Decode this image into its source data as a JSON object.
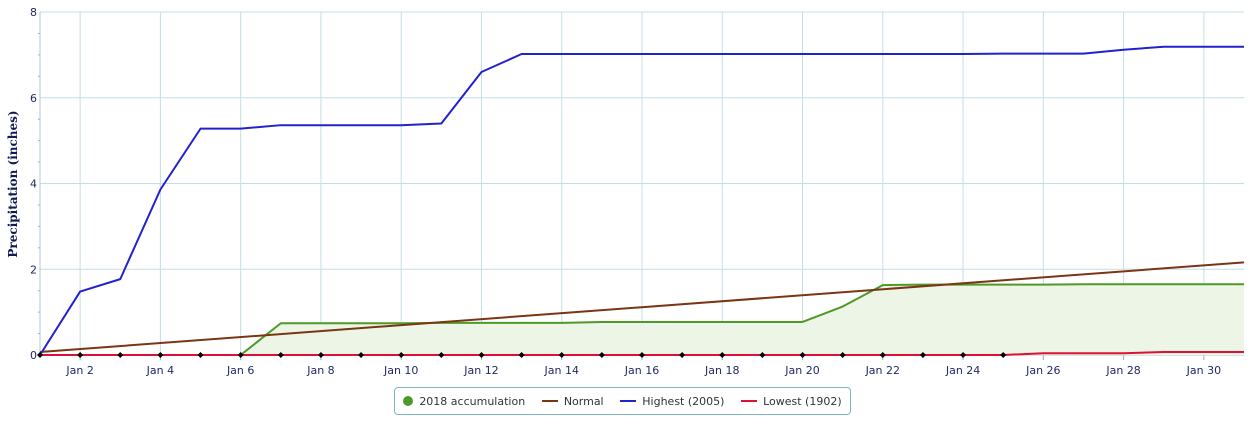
{
  "chart_data": {
    "type": "line",
    "ylabel": "Precipitation (inches)",
    "xlabel": "",
    "ylim": [
      0,
      8
    ],
    "xlim": [
      1,
      31
    ],
    "y_ticks": [
      0,
      2,
      4,
      6,
      8
    ],
    "x_ticks": [
      {
        "day": 2,
        "label": "Jan 2"
      },
      {
        "day": 4,
        "label": "Jan 4"
      },
      {
        "day": 6,
        "label": "Jan 6"
      },
      {
        "day": 8,
        "label": "Jan 8"
      },
      {
        "day": 10,
        "label": "Jan 10"
      },
      {
        "day": 12,
        "label": "Jan 12"
      },
      {
        "day": 14,
        "label": "Jan 14"
      },
      {
        "day": 16,
        "label": "Jan 16"
      },
      {
        "day": 18,
        "label": "Jan 18"
      },
      {
        "day": 20,
        "label": "Jan 20"
      },
      {
        "day": 22,
        "label": "Jan 22"
      },
      {
        "day": 24,
        "label": "Jan 24"
      },
      {
        "day": 26,
        "label": "Jan 26"
      },
      {
        "day": 28,
        "label": "Jan 28"
      },
      {
        "day": 30,
        "label": "Jan 30"
      }
    ],
    "grid": true,
    "legend_position": "bottom-center",
    "series": [
      {
        "name": "2018 accumulation",
        "style": "area",
        "color": "#4e9a26",
        "fill": "#ecf5e6",
        "x": [
          1,
          2,
          3,
          4,
          5,
          6,
          7,
          8,
          9,
          10,
          11,
          12,
          13,
          14,
          15,
          16,
          17,
          18,
          19,
          20,
          21,
          22,
          23,
          24,
          25,
          26,
          27,
          28,
          29,
          30,
          31
        ],
        "values": [
          0,
          0,
          0,
          0,
          0,
          0,
          0.74,
          0.74,
          0.74,
          0.74,
          0.75,
          0.75,
          0.75,
          0.75,
          0.77,
          0.77,
          0.77,
          0.77,
          0.77,
          0.77,
          1.13,
          1.63,
          1.64,
          1.64,
          1.64,
          1.64,
          1.65,
          1.65,
          1.65,
          1.65,
          1.65
        ]
      },
      {
        "name": "Normal",
        "style": "line",
        "color": "#7b3514",
        "x": [
          1,
          31
        ],
        "values": [
          0.07,
          2.16
        ]
      },
      {
        "name": "Highest (2005)",
        "style": "line",
        "color": "#2222cc",
        "x": [
          1,
          2,
          3,
          4,
          5,
          6,
          7,
          8,
          9,
          10,
          11,
          12,
          13,
          14,
          15,
          16,
          17,
          18,
          19,
          20,
          21,
          22,
          23,
          24,
          25,
          26,
          27,
          28,
          29,
          30,
          31
        ],
        "values": [
          0,
          1.48,
          1.77,
          3.86,
          5.28,
          5.28,
          5.36,
          5.36,
          5.36,
          5.36,
          5.4,
          6.6,
          7.02,
          7.02,
          7.02,
          7.02,
          7.02,
          7.02,
          7.02,
          7.02,
          7.02,
          7.02,
          7.02,
          7.02,
          7.03,
          7.03,
          7.03,
          7.12,
          7.19,
          7.19,
          7.19
        ]
      },
      {
        "name": "Lowest (1902)",
        "style": "line",
        "color": "#dd1133",
        "x": [
          1,
          2,
          3,
          4,
          5,
          6,
          7,
          8,
          9,
          10,
          11,
          12,
          13,
          14,
          15,
          16,
          17,
          18,
          19,
          20,
          21,
          22,
          23,
          24,
          25,
          26,
          27,
          28,
          29,
          30,
          31
        ],
        "values": [
          0,
          0,
          0,
          0,
          0,
          0,
          0,
          0,
          0,
          0,
          0,
          0,
          0,
          0,
          0,
          0,
          0,
          0,
          0,
          0,
          0,
          0,
          0,
          0,
          0,
          0.04,
          0.04,
          0.04,
          0.07,
          0.07,
          0.07
        ]
      }
    ]
  }
}
